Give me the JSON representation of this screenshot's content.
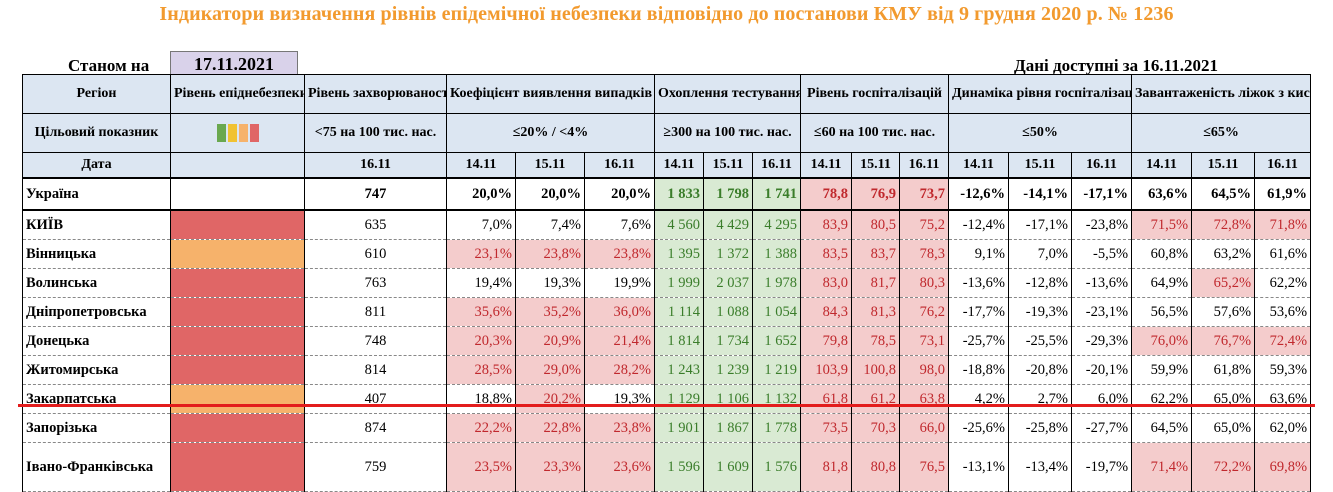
{
  "title": "Індикатори визначення рівнів епідемічної небезпеки відповідно до постанови КМУ від 9 грудня 2020 р. № 1236",
  "as_of_label": "Станом на",
  "as_of_date": "17.11.2021",
  "available_label": "Дані доступні за  16.11.2021",
  "headers": {
    "region": "Регіон",
    "level": "Рівень епіднебезпеки",
    "incidence": "Рівень захворюваності",
    "detection": "Коефіцієнт виявлення випадків інфікування",
    "testing": "Охоплення тестуванням",
    "hosp": "Рівень госпіталізацій",
    "hosp_dyn": "Динаміка рівня госпіталізацій",
    "oxygen": "Завантаженість ліжок з киснем"
  },
  "targets": {
    "label": "Цільовий показник",
    "incidence": "<75 на 100 тис. нас.",
    "detection": "≤20% / <4%",
    "testing": "≥300 на 100 тис. нас.",
    "hosp": "≤60 на 100 тис. нас.",
    "hosp_dyn": "≤50%",
    "oxygen": "≤65%"
  },
  "legend_colors": [
    "#6AA84F",
    "#F1C232",
    "#F6B26B",
    "#E06666"
  ],
  "date_row": {
    "label": "Дата",
    "incidence": "16.11",
    "dates3": [
      "14.11",
      "15.11",
      "16.11"
    ]
  },
  "rows": [
    {
      "region": "Україна",
      "level": "",
      "incidence": "747",
      "detection": [
        "20,0%",
        "20,0%",
        "20,0%"
      ],
      "testing": [
        "1 833",
        "1 798",
        "1 741"
      ],
      "hosp": [
        "78,8",
        "76,9",
        "73,7"
      ],
      "hosp_dyn": [
        "-12,6%",
        "-14,1%",
        "-17,1%"
      ],
      "oxygen": [
        "63,6%",
        "64,5%",
        "61,9%"
      ]
    },
    {
      "region": "КИЇВ",
      "level": "red",
      "incidence": "635",
      "detection": [
        "7,0%",
        "7,4%",
        "7,6%"
      ],
      "testing": [
        "4 560",
        "4 429",
        "4 295"
      ],
      "hosp": [
        "83,9",
        "80,5",
        "75,2"
      ],
      "hosp_dyn": [
        "-12,4%",
        "-17,1%",
        "-23,8%"
      ],
      "oxygen": [
        "71,5%",
        "72,8%",
        "71,8%"
      ]
    },
    {
      "region": "Вінницька",
      "level": "orange",
      "incidence": "610",
      "detection": [
        "23,1%",
        "23,8%",
        "23,8%"
      ],
      "testing": [
        "1 395",
        "1 372",
        "1 388"
      ],
      "hosp": [
        "83,5",
        "83,7",
        "78,3"
      ],
      "hosp_dyn": [
        "9,1%",
        "7,0%",
        "-5,5%"
      ],
      "oxygen": [
        "60,8%",
        "63,2%",
        "61,6%"
      ]
    },
    {
      "region": "Волинська",
      "level": "red",
      "incidence": "763",
      "detection": [
        "19,4%",
        "19,3%",
        "19,9%"
      ],
      "testing": [
        "1 999",
        "2 037",
        "1 978"
      ],
      "hosp": [
        "83,0",
        "81,7",
        "80,3"
      ],
      "hosp_dyn": [
        "-13,6%",
        "-12,8%",
        "-13,6%"
      ],
      "oxygen": [
        "64,9%",
        "65,2%",
        "62,2%"
      ]
    },
    {
      "region": "Дніпропетровська",
      "level": "red",
      "incidence": "811",
      "detection": [
        "35,6%",
        "35,2%",
        "36,0%"
      ],
      "testing": [
        "1 114",
        "1 088",
        "1 054"
      ],
      "hosp": [
        "84,3",
        "81,3",
        "76,2"
      ],
      "hosp_dyn": [
        "-17,7%",
        "-19,3%",
        "-23,1%"
      ],
      "oxygen": [
        "56,5%",
        "57,6%",
        "53,6%"
      ]
    },
    {
      "region": "Донецька",
      "level": "red",
      "incidence": "748",
      "detection": [
        "20,3%",
        "20,9%",
        "21,4%"
      ],
      "testing": [
        "1 814",
        "1 734",
        "1 652"
      ],
      "hosp": [
        "79,8",
        "78,5",
        "73,1"
      ],
      "hosp_dyn": [
        "-25,7%",
        "-25,5%",
        "-29,3%"
      ],
      "oxygen": [
        "76,0%",
        "76,7%",
        "72,4%"
      ]
    },
    {
      "region": "Житомирська",
      "level": "red",
      "incidence": "814",
      "detection": [
        "28,5%",
        "29,0%",
        "28,2%"
      ],
      "testing": [
        "1 243",
        "1 239",
        "1 219"
      ],
      "hosp": [
        "103,9",
        "100,8",
        "98,0"
      ],
      "hosp_dyn": [
        "-18,8%",
        "-20,8%",
        "-20,1%"
      ],
      "oxygen": [
        "59,9%",
        "61,8%",
        "59,3%"
      ]
    },
    {
      "region": "Закарпатська",
      "level": "orange",
      "incidence": "407",
      "detection": [
        "18,8%",
        "20,2%",
        "19,3%"
      ],
      "testing": [
        "1 129",
        "1 106",
        "1 132"
      ],
      "hosp": [
        "61,8",
        "61,2",
        "63,8"
      ],
      "hosp_dyn": [
        "4,2%",
        "2,7%",
        "6,0%"
      ],
      "oxygen": [
        "62,2%",
        "65,0%",
        "63,6%"
      ]
    },
    {
      "region": "Запорізька",
      "level": "red",
      "incidence": "874",
      "detection": [
        "22,2%",
        "22,8%",
        "23,8%"
      ],
      "testing": [
        "1 901",
        "1 867",
        "1 778"
      ],
      "hosp": [
        "73,5",
        "70,3",
        "66,0"
      ],
      "hosp_dyn": [
        "-25,6%",
        "-25,8%",
        "-27,7%"
      ],
      "oxygen": [
        "64,5%",
        "65,0%",
        "62,0%"
      ]
    },
    {
      "region": "Івано-Франківська",
      "level": "red",
      "incidence": "759",
      "detection": [
        "23,5%",
        "23,3%",
        "23,6%"
      ],
      "testing": [
        "1 596",
        "1 609",
        "1 576"
      ],
      "hosp": [
        "81,8",
        "80,8",
        "76,5"
      ],
      "hosp_dyn": [
        "-13,1%",
        "-13,4%",
        "-19,7%"
      ],
      "oxygen": [
        "71,4%",
        "72,2%",
        "69,8%"
      ]
    }
  ]
}
